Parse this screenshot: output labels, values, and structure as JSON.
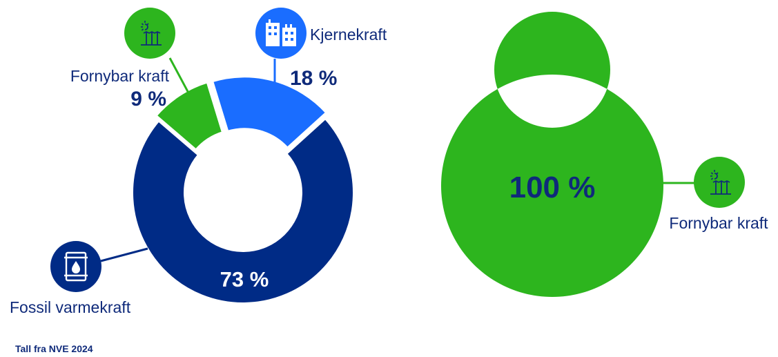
{
  "colors": {
    "fossil": "#002B86",
    "nuclear": "#1A6DFF",
    "renewable": "#2DB51E",
    "text": "#0F2A7A",
    "white": "#FFFFFF"
  },
  "chart_data": [
    {
      "type": "pie",
      "variant": "donut",
      "categories": [
        "Fossil varmekraft",
        "Kjernekraft",
        "Fornybar kraft"
      ],
      "values": [
        73,
        18,
        9
      ],
      "labels": [
        "73 %",
        "18 %",
        "9 %"
      ],
      "icons": [
        "oil-barrel-icon",
        "nuclear-plant-building-icon",
        "renewable-sun-wind-icon"
      ]
    },
    {
      "type": "pie",
      "variant": "donut",
      "categories": [
        "Fornybar kraft"
      ],
      "values": [
        100
      ],
      "labels": [
        "100 %"
      ],
      "icons": [
        "renewable-sun-wind-icon"
      ]
    }
  ],
  "source_note": "Tall fra NVE 2024"
}
